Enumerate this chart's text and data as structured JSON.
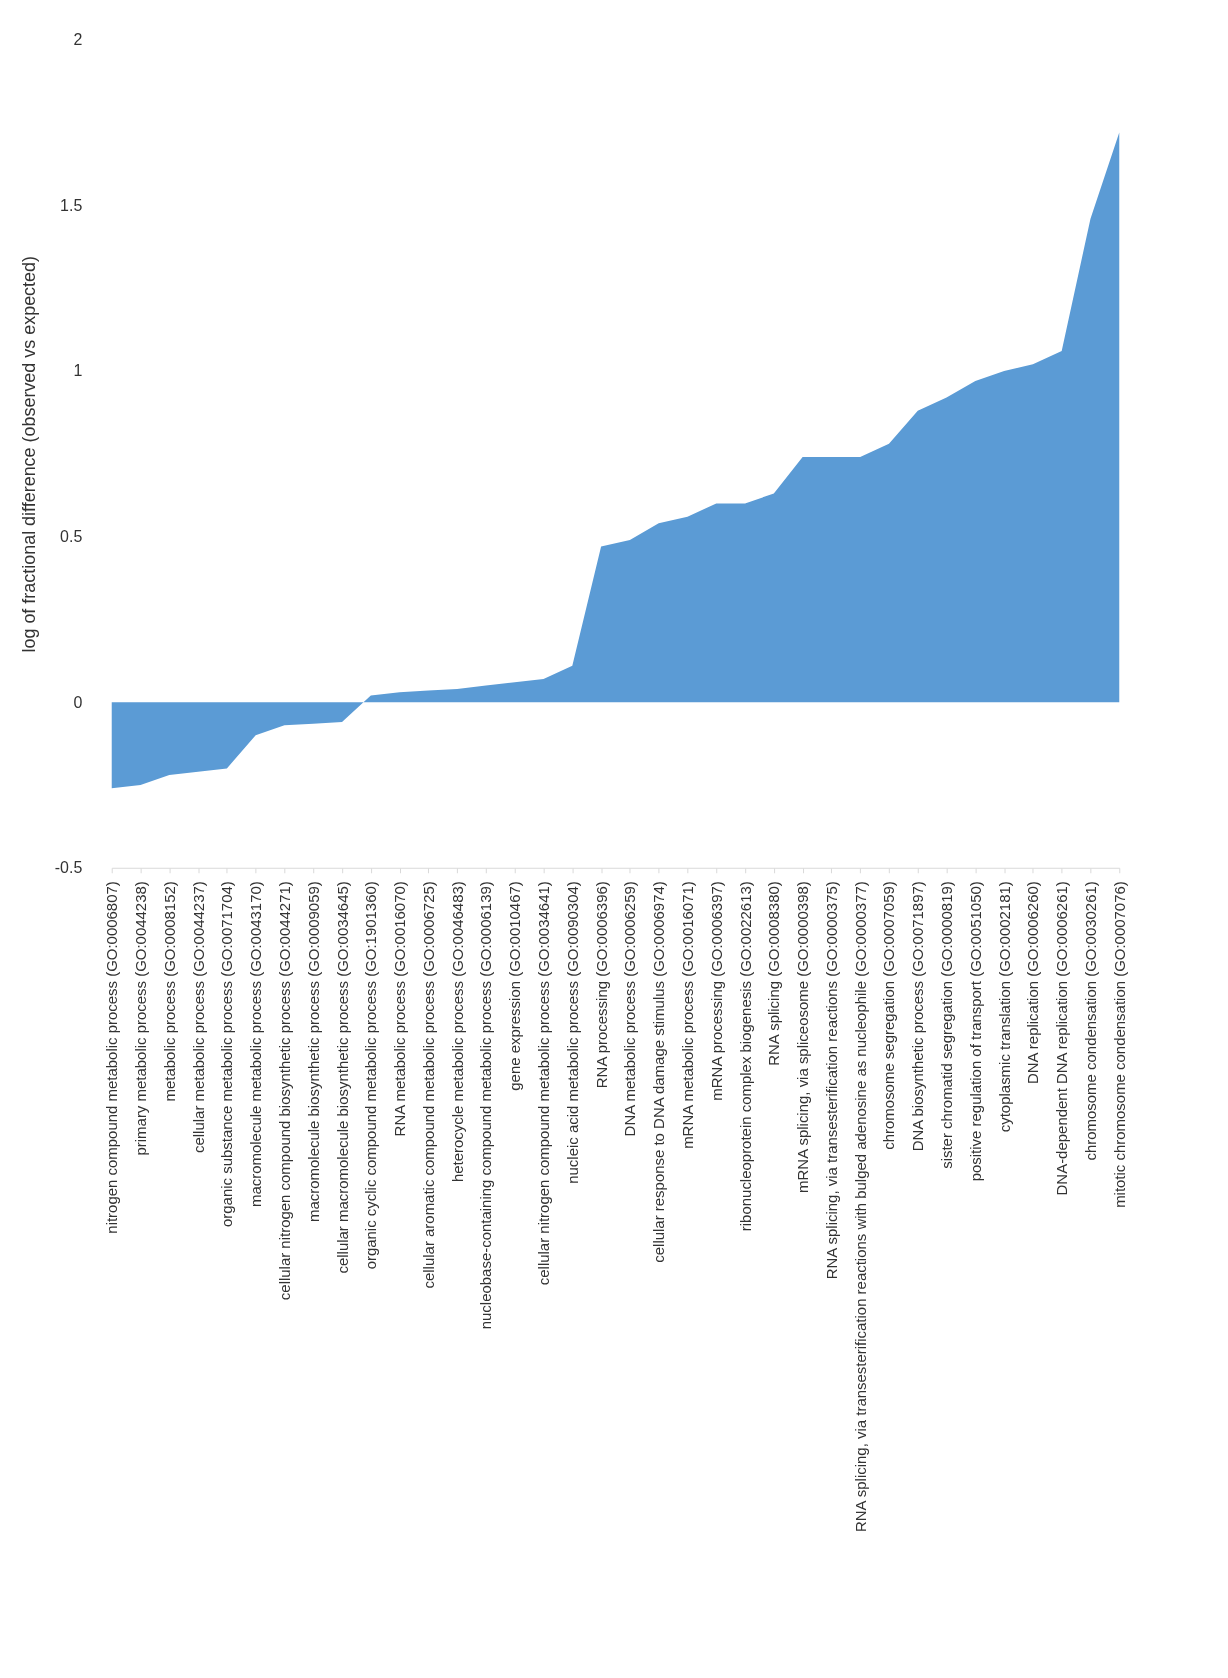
{
  "chart_data": {
    "type": "area",
    "ylabel": "log of fractional difference (observed vs expected)",
    "categories": [
      "nitrogen compound metabolic process (GO:0006807)",
      "primary metabolic process (GO:0044238)",
      "metabolic process (GO:0008152)",
      "cellular metabolic process (GO:0044237)",
      "organic substance metabolic process (GO:0071704)",
      "macromolecule metabolic process (GO:0043170)",
      "cellular nitrogen compound biosynthetic process (GO:0044271)",
      "macromolecule biosynthetic process (GO:0009059)",
      "cellular macromolecule biosynthetic process (GO:0034645)",
      "organic cyclic compound metabolic process (GO:1901360)",
      "RNA metabolic process (GO:0016070)",
      "cellular aromatic compound metabolic process (GO:0006725)",
      "heterocycle metabolic process (GO:0046483)",
      "nucleobase-containing compound metabolic process (GO:0006139)",
      "gene expression (GO:0010467)",
      "cellular nitrogen compound metabolic process (GO:0034641)",
      "nucleic acid metabolic process (GO:0090304)",
      "RNA processing (GO:0006396)",
      "DNA metabolic process (GO:0006259)",
      "cellular response to DNA damage stimulus (GO:0006974)",
      "mRNA metabolic process (GO:0016071)",
      "mRNA processing (GO:0006397)",
      "ribonucleoprotein complex biogenesis (GO:0022613)",
      "RNA splicing (GO:0008380)",
      "mRNA splicing, via spliceosome (GO:0000398)",
      "RNA splicing, via transesterification reactions (GO:0000375)",
      "RNA splicing, via transesterification reactions with bulged adenosine as nucleophile (GO:0000377)",
      "chromosome segregation (GO:0007059)",
      "DNA biosynthetic process (GO:0071897)",
      "sister chromatid segregation (GO:0000819)",
      "positive regulation of transport (GO:0051050)",
      "cytoplasmic translation (GO:0002181)",
      "DNA replication (GO:0006260)",
      "DNA-dependent DNA replication (GO:0006261)",
      "chromosome condensation (GO:0030261)",
      "mitotic chromosome condensation (GO:0007076)"
    ],
    "values": [
      -0.26,
      -0.25,
      -0.22,
      -0.21,
      -0.2,
      -0.1,
      -0.07,
      -0.065,
      -0.06,
      0.02,
      0.03,
      0.035,
      0.04,
      0.05,
      0.06,
      0.07,
      0.11,
      0.47,
      0.49,
      0.54,
      0.56,
      0.6,
      0.6,
      0.63,
      0.74,
      0.74,
      0.74,
      0.78,
      0.88,
      0.92,
      0.97,
      1.0,
      1.02,
      1.06,
      1.46,
      1.72
    ],
    "color": "#5b9bd5",
    "ylim": [
      -0.5,
      2
    ],
    "yticks": [
      -0.5,
      0,
      0.5,
      1,
      1.5,
      2
    ],
    "grid": false
  }
}
